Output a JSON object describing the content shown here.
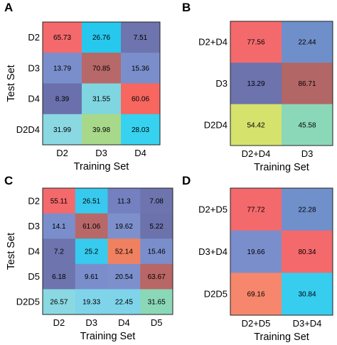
{
  "chart_data": [
    {
      "type": "heatmap",
      "panel": "A",
      "xlabel": "Training Set",
      "ylabel": "Test Set",
      "x": [
        "D2",
        "D3",
        "D4"
      ],
      "y": [
        "D2",
        "D3",
        "D4",
        "D2D4"
      ],
      "values": [
        [
          "65.73",
          "26.76",
          "7.51"
        ],
        [
          "13.79",
          "70.85",
          "15.36"
        ],
        [
          "8.39",
          "31.55",
          "60.06"
        ],
        [
          "31.99",
          "39.98",
          "28.03"
        ]
      ],
      "colors": [
        [
          "#f4696c",
          "#27c8ed",
          "#6e74ad"
        ],
        [
          "#7b8ecc",
          "#b76868",
          "#7b8ecc"
        ],
        [
          "#6a70ac",
          "#7fd6e0",
          "#f7665f"
        ],
        [
          "#8ad8e2",
          "#a8d98a",
          "#36d2f0"
        ]
      ]
    },
    {
      "type": "heatmap",
      "panel": "B",
      "xlabel": "Training Set",
      "ylabel": "",
      "x": [
        "D2+D4",
        "D3"
      ],
      "y": [
        "D2+D4",
        "D3",
        "D2D4"
      ],
      "values": [
        [
          "77.56",
          "22.44"
        ],
        [
          "13.29",
          "86.71"
        ],
        [
          "54.42",
          "45.58"
        ]
      ],
      "colors": [
        [
          "#f46a6c",
          "#6f8fca"
        ],
        [
          "#6c73ad",
          "#b36666"
        ],
        [
          "#d5e26c",
          "#8ad8b8"
        ]
      ]
    },
    {
      "type": "heatmap",
      "panel": "C",
      "xlabel": "Training Set",
      "ylabel": "Test Set",
      "x": [
        "D2",
        "D3",
        "D4",
        "D5"
      ],
      "y": [
        "D2",
        "D3",
        "D4",
        "D5",
        "D2D5"
      ],
      "values": [
        [
          "55.11",
          "26.51",
          "11.3",
          "7.08"
        ],
        [
          "14.1",
          "61.06",
          "19.62",
          "5.22"
        ],
        [
          "7.2",
          "25.2",
          "52.14",
          "15.46"
        ],
        [
          "6.18",
          "9.61",
          "20.54",
          "63.67"
        ],
        [
          "26.57",
          "19.33",
          "22.45",
          "31.65"
        ]
      ],
      "colors": [
        [
          "#f4696c",
          "#37c9ee",
          "#7480c0",
          "#6e74ad"
        ],
        [
          "#7b8ecc",
          "#b86868",
          "#7e90cc",
          "#6c72ab"
        ],
        [
          "#6e74ad",
          "#37cbef",
          "#f08160",
          "#7b8ecc"
        ],
        [
          "#6e74ad",
          "#7b8ecc",
          "#7e90cc",
          "#b86666"
        ],
        [
          "#8ad8e2",
          "#7fd4ea",
          "#7fd4ea",
          "#8ad8b8"
        ]
      ]
    },
    {
      "type": "heatmap",
      "panel": "D",
      "xlabel": "Training Set",
      "ylabel": "",
      "x": [
        "D2+D5",
        "D3+D4"
      ],
      "y": [
        "D2+D5",
        "D3+D4",
        "D2D5"
      ],
      "values": [
        [
          "77.72",
          "22.28"
        ],
        [
          "19.66",
          "80.34"
        ],
        [
          "69.16",
          "30.84"
        ]
      ],
      "colors": [
        [
          "#f4696c",
          "#7090cc"
        ],
        [
          "#7b8ecc",
          "#f4696c"
        ],
        [
          "#f6876c",
          "#36cdef"
        ]
      ]
    }
  ]
}
